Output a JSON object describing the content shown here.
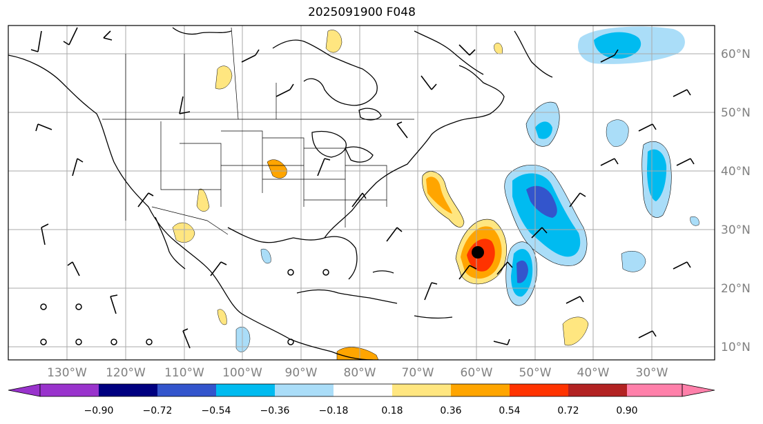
{
  "title": "2025091900 F048",
  "lon_labels": [
    "130°W",
    "120°W",
    "110°W",
    "100°W",
    "90°W",
    "80°W",
    "70°W",
    "60°W",
    "50°W",
    "40°W",
    "30°W"
  ],
  "lat_labels": [
    "60°N",
    "50°N",
    "40°N",
    "30°N",
    "20°N",
    "10°N"
  ],
  "colorbar": {
    "ticks": [
      "−0.90",
      "−0.72",
      "−0.54",
      "−0.36",
      "−0.18",
      "0.18",
      "0.36",
      "0.54",
      "0.72",
      "0.90"
    ],
    "colors": [
      "#9933cc",
      "#000080",
      "#3355cc",
      "#00bbf0",
      "#aaddf8",
      "#ffffff",
      "#ffe680",
      "#ffa500",
      "#ff3300",
      "#b22222",
      "#ff80aa"
    ]
  },
  "fill_colors": {
    "neg_light": "#aaddf8",
    "neg_mid": "#00bbf0",
    "neg_dark": "#3355cc",
    "pos_light": "#ffe680",
    "pos_mid": "#ffa500",
    "pos_dark": "#ff3300"
  },
  "storm_marker": "black-dot"
}
